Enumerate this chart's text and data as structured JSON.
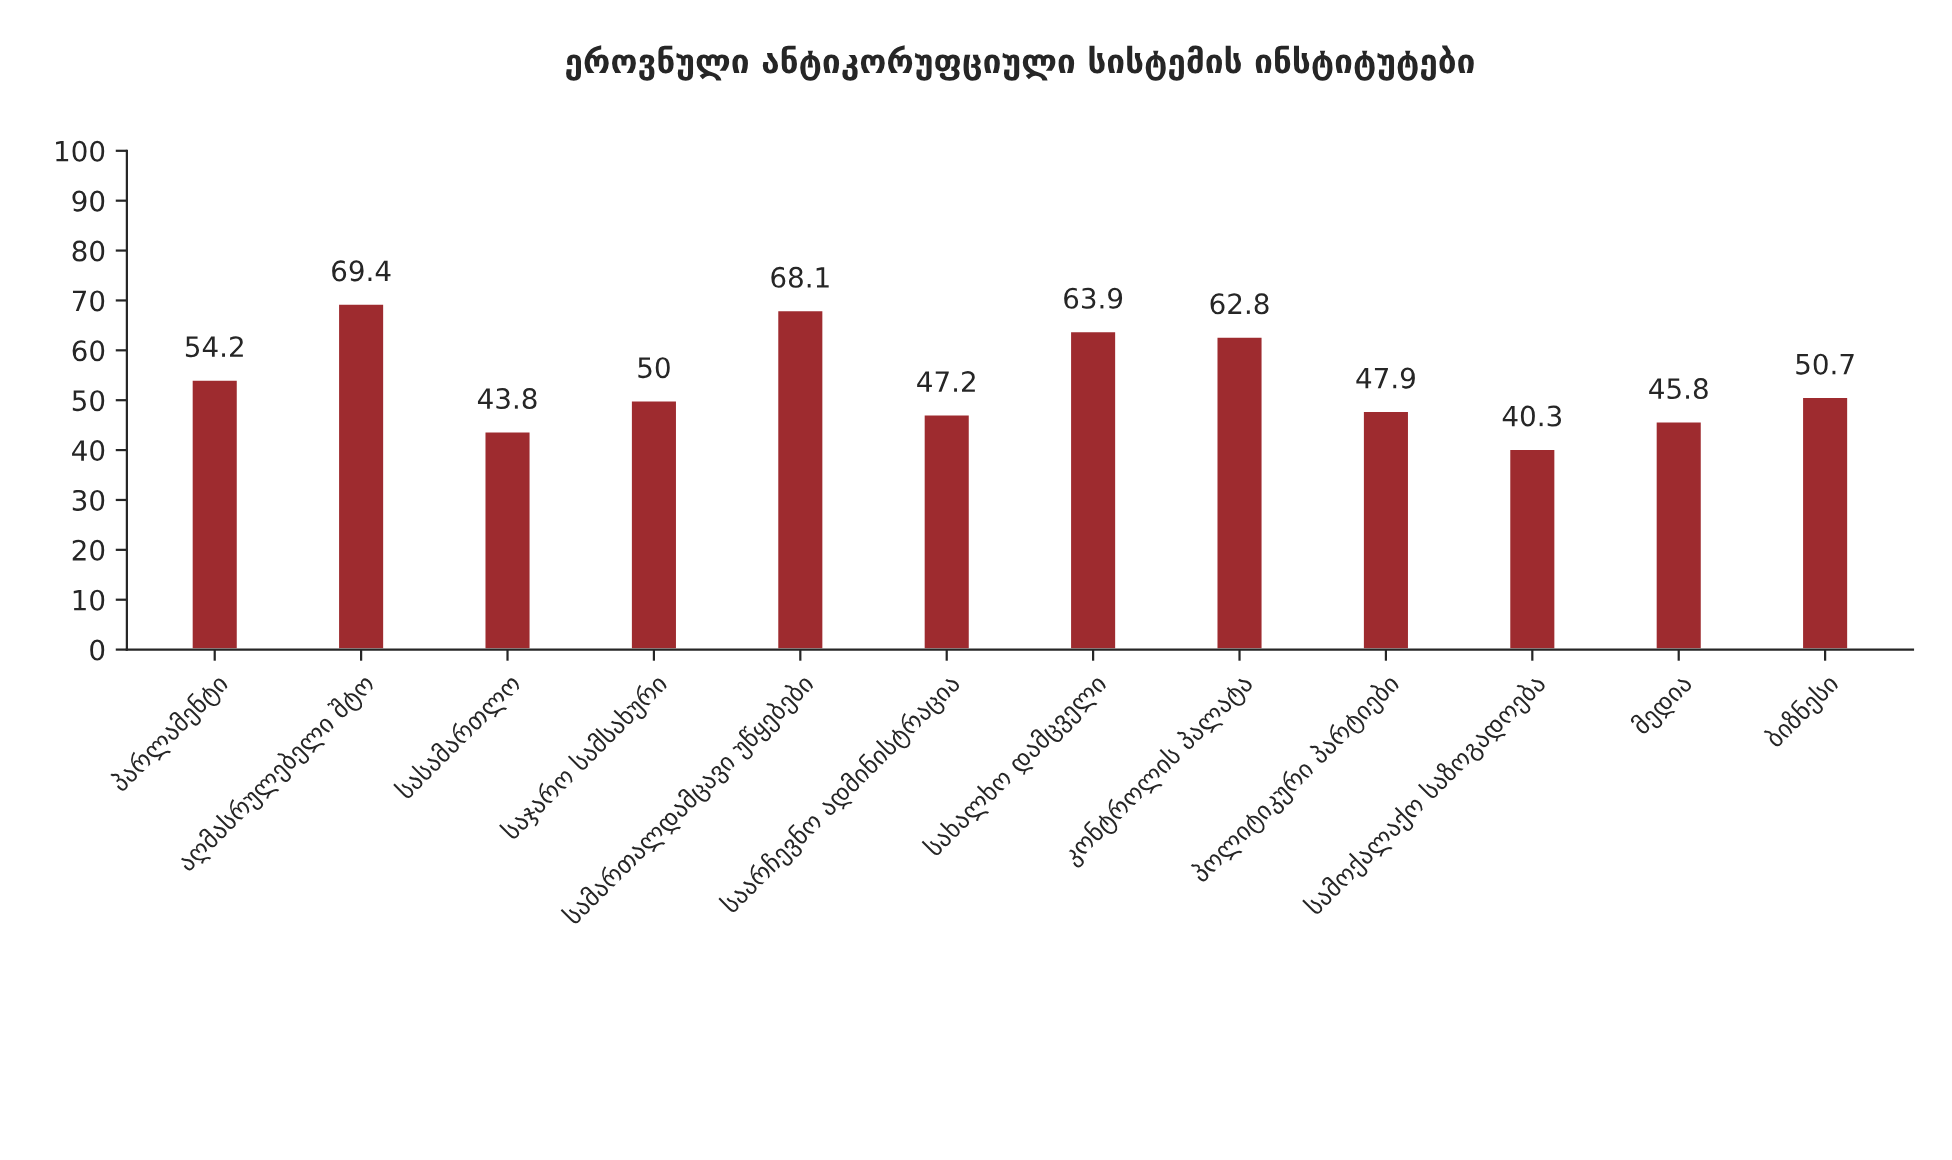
{
  "chart_data": {
    "type": "bar",
    "title": "ეროვნული ანტიკორუფციული სისტემის ინსტიტუტები",
    "categories": [
      "პარლამენტი",
      "აღმასრულებელი შტო",
      "სასამართლო",
      "საჯარო სამსახური",
      "სამართალდამცავი უწყებები",
      "საარჩევნო ადმინისტრაცია",
      "სახალხო დამცველი",
      "კონტროლის პალატა",
      "პოლიტიკური პარტიები",
      "სამოქალაქო საზოგადოება",
      "მედია",
      "ბიზნესი"
    ],
    "values": [
      54.2,
      69.4,
      43.8,
      50,
      68.1,
      47.2,
      63.9,
      62.8,
      47.9,
      40.3,
      45.8,
      50.7
    ],
    "color": "#9e2b2f",
    "ylim": [
      0,
      100
    ],
    "yticks": [
      0,
      10,
      20,
      30,
      40,
      50,
      60,
      70,
      80,
      90,
      100
    ],
    "data_labels": true,
    "grid": false
  }
}
